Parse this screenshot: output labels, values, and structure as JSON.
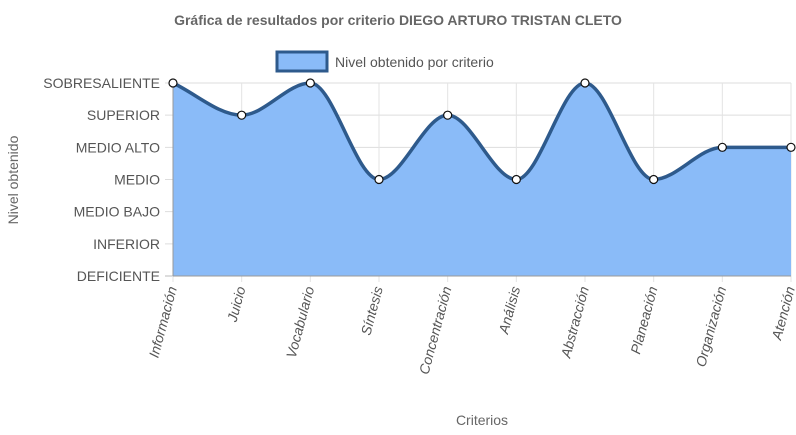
{
  "chart_data": {
    "type": "area",
    "title": "Gráfica de resultados por criterio DIEGO ARTURO TRISTAN CLETO",
    "xlabel": "Criterios",
    "ylabel": "Nivel obtenido",
    "y_levels": [
      "DEFICIENTE",
      "INFERIOR",
      "MEDIO BAJO",
      "MEDIO",
      "MEDIO ALTO",
      "SUPERIOR",
      "SOBRESALIENTE"
    ],
    "ylim": [
      0,
      6
    ],
    "categories": [
      "Información",
      "Juicio",
      "Vocabulario",
      "Síntesis",
      "Concentración",
      "Análisis",
      "Abstracción",
      "Planeación",
      "Organización",
      "Atención"
    ],
    "series": [
      {
        "name": "Nivel obtenido por criterio",
        "values": [
          6,
          5,
          6,
          3,
          5,
          3,
          6,
          3,
          4,
          4
        ],
        "fill_color": "#8ABBF8",
        "line_color": "#2E5A8C"
      }
    ],
    "grid": true,
    "legend_position": "top"
  }
}
